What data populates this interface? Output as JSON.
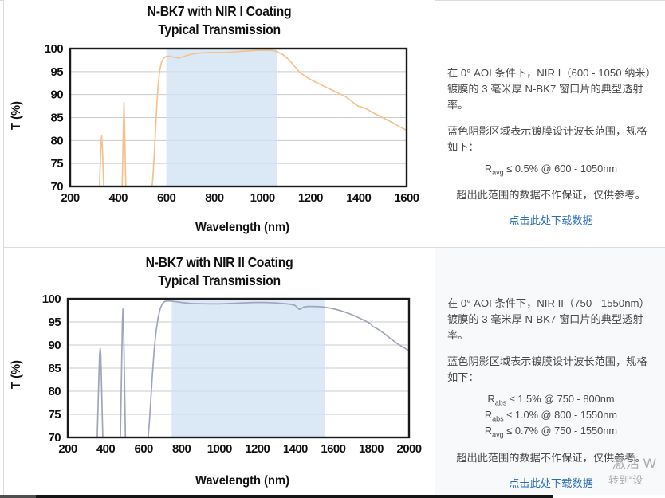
{
  "colors": {
    "nir1_line": "#f4c28f",
    "nir2_line": "#9fa6ba",
    "shade": "#cfe2f3",
    "grid": "#cacaca",
    "plot_border": "#1a1a1a",
    "link": "#2a6db8",
    "footer_seg1": "#4f4f4f",
    "footer_seg2": "#151515"
  },
  "chart_data": [
    {
      "type": "line",
      "title": "N-BK7 with NIR I Coating",
      "subtitle": "Typical Transmission",
      "xlabel": "Wavelength (nm)",
      "ylabel": "T (%)",
      "xlim": [
        200,
        1600
      ],
      "ylim": [
        70,
        100
      ],
      "xticks": [
        200,
        400,
        600,
        800,
        1000,
        1200,
        1400,
        1600
      ],
      "yticks": [
        70,
        75,
        80,
        85,
        90,
        95,
        100
      ],
      "grid": true,
      "shade_x": [
        600,
        1060
      ],
      "design_range_nm": [
        600,
        1050
      ],
      "series": [
        {
          "name": "Transmission",
          "points": [
            [
              316,
              66
            ],
            [
              322,
              70
            ],
            [
              327,
              78
            ],
            [
              331,
              81
            ],
            [
              335,
              77
            ],
            [
              341,
              68
            ],
            [
              344,
              66
            ],
            [
              412,
              66
            ],
            [
              417,
              71
            ],
            [
              421,
              82
            ],
            [
              424,
              88.3
            ],
            [
              427,
              82
            ],
            [
              431,
              71
            ],
            [
              435,
              66
            ],
            [
              527,
              66
            ],
            [
              536,
              68.5
            ],
            [
              543,
              71
            ],
            [
              549,
              76
            ],
            [
              555,
              82
            ],
            [
              561,
              88
            ],
            [
              567,
              92.5
            ],
            [
              573,
              95.3
            ],
            [
              580,
              97
            ],
            [
              588,
              97.9
            ],
            [
              598,
              98.25
            ],
            [
              612,
              98.35
            ],
            [
              630,
              98.15
            ],
            [
              648,
              97.95
            ],
            [
              665,
              98.15
            ],
            [
              685,
              98.5
            ],
            [
              710,
              98.85
            ],
            [
              740,
              99.05
            ],
            [
              780,
              99.15
            ],
            [
              820,
              99.15
            ],
            [
              860,
              99.2
            ],
            [
              900,
              99.35
            ],
            [
              940,
              99.5
            ],
            [
              975,
              99.6
            ],
            [
              1010,
              99.65
            ],
            [
              1040,
              99.6
            ],
            [
              1060,
              99.35
            ],
            [
              1085,
              98.7
            ],
            [
              1110,
              97.6
            ],
            [
              1130,
              96.4
            ],
            [
              1152,
              95
            ],
            [
              1180,
              93.9
            ],
            [
              1210,
              93
            ],
            [
              1245,
              92.1
            ],
            [
              1280,
              91.2
            ],
            [
              1315,
              90.3
            ],
            [
              1345,
              89.6
            ],
            [
              1370,
              88.6
            ],
            [
              1390,
              87.7
            ],
            [
              1400,
              87.45
            ],
            [
              1415,
              87.25
            ],
            [
              1435,
              86.8
            ],
            [
              1465,
              85.9
            ],
            [
              1500,
              85
            ],
            [
              1540,
              83.9
            ],
            [
              1570,
              83
            ],
            [
              1600,
              82.2
            ]
          ]
        }
      ]
    },
    {
      "type": "line",
      "title": "N-BK7 with NIR II Coating",
      "subtitle": "Typical Transmission",
      "xlabel": "Wavelength (nm)",
      "ylabel": "T (%)",
      "xlim": [
        200,
        2000
      ],
      "ylim": [
        70,
        100
      ],
      "xticks": [
        200,
        400,
        600,
        800,
        1000,
        1200,
        1400,
        1600,
        1800,
        2000
      ],
      "yticks": [
        70,
        75,
        80,
        85,
        90,
        95,
        100
      ],
      "grid": true,
      "shade_x": [
        748,
        1555
      ],
      "design_range_nm": [
        750,
        1550
      ],
      "series": [
        {
          "name": "Transmission",
          "points": [
            [
              349,
              66
            ],
            [
              355,
              70
            ],
            [
              362,
              80
            ],
            [
              368,
              88
            ],
            [
              371,
              89.3
            ],
            [
              374,
              88
            ],
            [
              380,
              78
            ],
            [
              386,
              68
            ],
            [
              389,
              66
            ],
            [
              472,
              66
            ],
            [
              478,
              71
            ],
            [
              484,
              85
            ],
            [
              488,
              95
            ],
            [
              491,
              97.8
            ],
            [
              494,
              95
            ],
            [
              499,
              83
            ],
            [
              504,
              70
            ],
            [
              507,
              66
            ],
            [
              610,
              66
            ],
            [
              622,
              69
            ],
            [
              630,
              73
            ],
            [
              638,
              78
            ],
            [
              647,
              84
            ],
            [
              656,
              89
            ],
            [
              666,
              93
            ],
            [
              677,
              96
            ],
            [
              688,
              97.9
            ],
            [
              698,
              98.9
            ],
            [
              710,
              99.4
            ],
            [
              725,
              99.55
            ],
            [
              745,
              99.5
            ],
            [
              775,
              99.35
            ],
            [
              810,
              99.15
            ],
            [
              850,
              99
            ],
            [
              895,
              98.95
            ],
            [
              945,
              98.9
            ],
            [
              1000,
              98.9
            ],
            [
              1060,
              99
            ],
            [
              1120,
              99.1
            ],
            [
              1180,
              99.2
            ],
            [
              1240,
              99.2
            ],
            [
              1300,
              99.1
            ],
            [
              1345,
              98.95
            ],
            [
              1380,
              98.8
            ],
            [
              1400,
              98.55
            ],
            [
              1412,
              98
            ],
            [
              1422,
              97.7
            ],
            [
              1432,
              97.9
            ],
            [
              1445,
              98.2
            ],
            [
              1465,
              98.35
            ],
            [
              1495,
              98.35
            ],
            [
              1525,
              98.3
            ],
            [
              1552,
              98.2
            ],
            [
              1580,
              98
            ],
            [
              1610,
              97.75
            ],
            [
              1650,
              97.3
            ],
            [
              1690,
              96.7
            ],
            [
              1730,
              96
            ],
            [
              1765,
              95.3
            ],
            [
              1790,
              94.8
            ],
            [
              1800,
              94.5
            ],
            [
              1808,
              94
            ],
            [
              1820,
              93.8
            ],
            [
              1845,
              93.2
            ],
            [
              1875,
              92.3
            ],
            [
              1905,
              91.3
            ],
            [
              1935,
              90.4
            ],
            [
              1965,
              89.6
            ],
            [
              2000,
              88.8
            ]
          ]
        }
      ]
    }
  ],
  "panels": [
    {
      "desc": "在 0° AOI 条件下，NIR I（600 - 1050 纳米）镀膜的 3 毫米厚 N-BK7 窗口片的典型透射率。",
      "shade_note": "蓝色阴影区域表示镀膜设计波长范围，规格如下：",
      "specs": [
        {
          "prefix": "R",
          "sub": "avg",
          "rest": " ≤ 0.5% @ 600 - 1050nm"
        }
      ],
      "disclaimer": "超出此范围的数据不作保证，仅供参考。",
      "link_label": "点击此处下载数据"
    },
    {
      "desc": "在 0° AOI 条件下，NIR II（750 - 1550nm）镀膜的 3 毫米厚 N-BK7 窗口片的典型透射率。",
      "shade_note": "蓝色阴影区域表示镀膜设计波长范围，规格如下：",
      "specs": [
        {
          "prefix": "R",
          "sub": "abs",
          "rest": " ≤ 1.5% @ 750 - 800nm"
        },
        {
          "prefix": "R",
          "sub": "abs",
          "rest": " ≤ 1.0% @ 800 - 1550nm"
        },
        {
          "prefix": "R",
          "sub": "avg",
          "rest": " ≤ 0.7% @ 750 - 1550nm"
        }
      ],
      "disclaimer": "超出此范围的数据不作保证，仅供参考。",
      "link_label": "点击此处下载数据"
    }
  ],
  "watermark": {
    "line1": "激活 W",
    "line2": "转到“设"
  }
}
